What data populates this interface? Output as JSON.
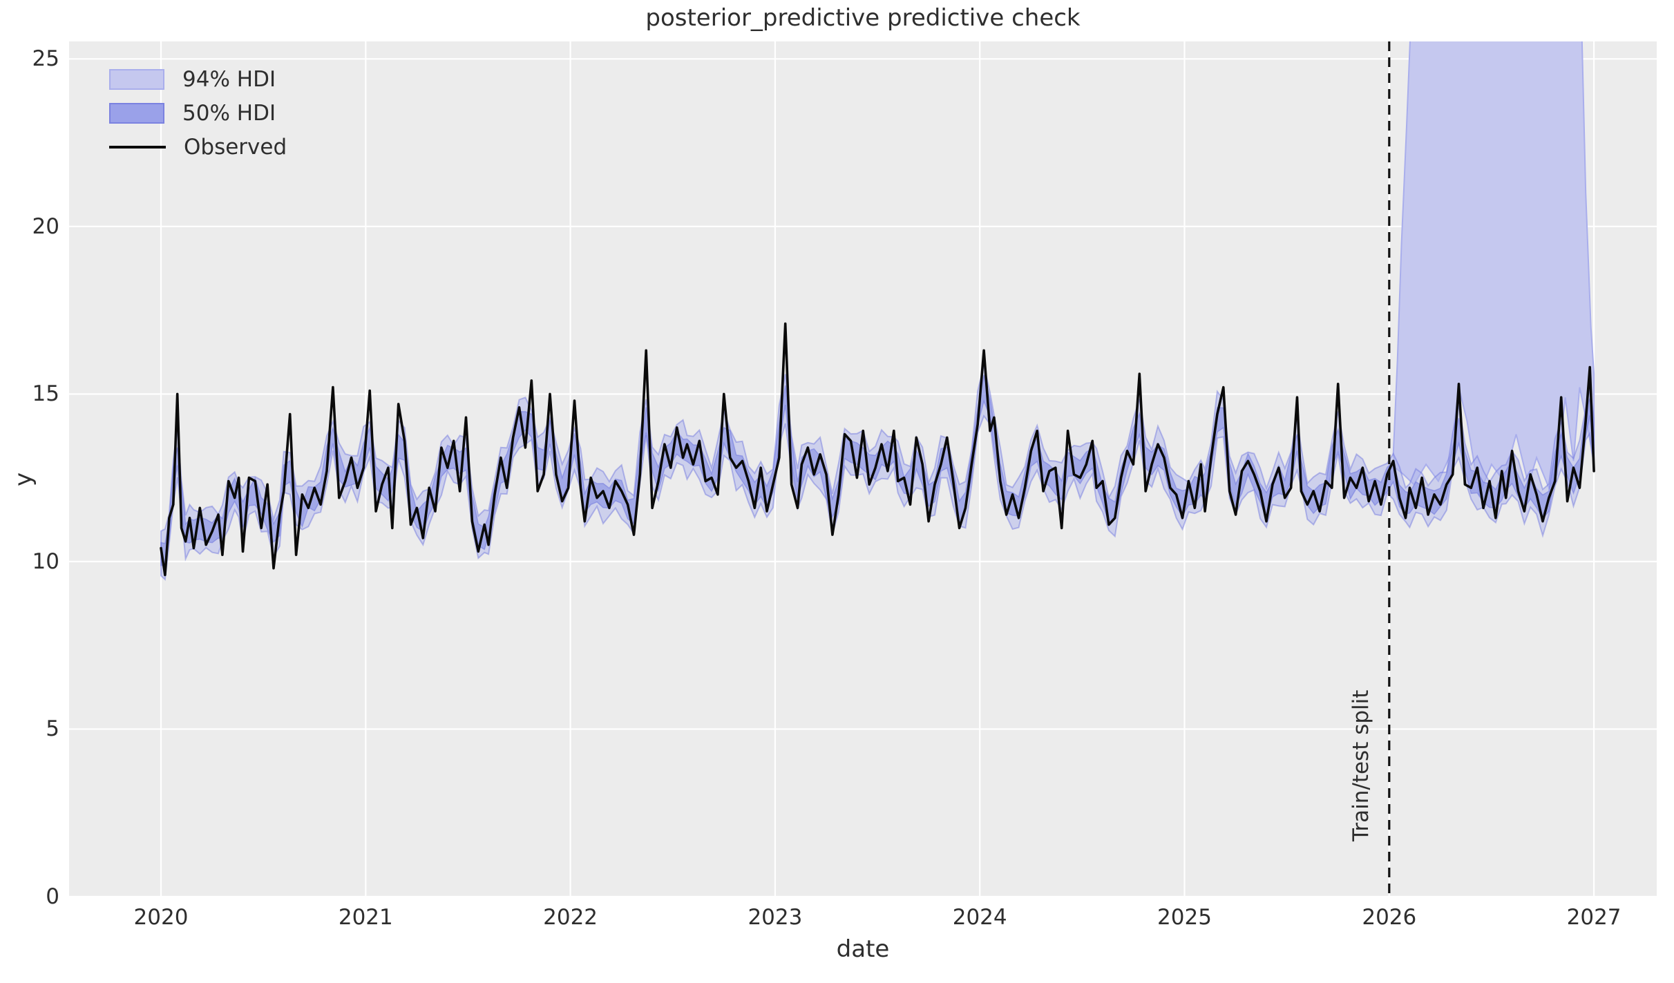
{
  "title": "posterior_predictive predictive check",
  "colors": {
    "figure_bg": "#ffffff",
    "axes_bg": "#ececec",
    "grid": "#ffffff",
    "hdi94_fill": "#c5c8ef",
    "hdi94_edge": "#a9aeec",
    "hdi94_tight_fill": "#aeb3ec",
    "hdi50_tight_fill": "#7e86e4",
    "hdi_tight_edge": "#6a72dd",
    "observed_line": "#0a0a0a",
    "split_line": "#111111",
    "text": "#2e2e2e"
  },
  "legend": {
    "items": [
      {
        "label": "94% HDI",
        "type": "patch",
        "fill": "#c5c8ef",
        "edge": "#a9aeec"
      },
      {
        "label": "50% HDI",
        "type": "patch",
        "fill": "#9aa1e9",
        "edge": "#7b82e0"
      },
      {
        "label": "Observed",
        "type": "line",
        "color": "#0a0a0a"
      }
    ],
    "position": "upper left",
    "frame": false
  },
  "split_marker": {
    "x": 2026.0,
    "label": "Train/test split",
    "style": "dashed"
  },
  "chart_data": {
    "type": "line",
    "title": "posterior_predictive predictive check",
    "xlabel": "date",
    "ylabel": "y",
    "xlim": [
      2019.55,
      2027.31
    ],
    "ylim": [
      0,
      25.5
    ],
    "grid": true,
    "x_tick_values": [
      2020,
      2021,
      2022,
      2023,
      2024,
      2025,
      2026,
      2027
    ],
    "x_tick_labels": [
      "2020",
      "2021",
      "2022",
      "2023",
      "2024",
      "2025",
      "2026",
      "2027"
    ],
    "y_tick_values": [
      0,
      5,
      10,
      15,
      20,
      25
    ],
    "y_tick_labels": [
      "0",
      "5",
      "10",
      "15",
      "20",
      "25"
    ],
    "hdi": {
      "width_94": 0.62,
      "width_50": 0.32,
      "wiggle": 0.3
    },
    "series": {
      "name": "Observed",
      "points": [
        [
          2020.0,
          10.4
        ],
        [
          2020.02,
          9.6
        ],
        [
          2020.04,
          11.3
        ],
        [
          2020.06,
          11.7
        ],
        [
          2020.08,
          15.0
        ],
        [
          2020.1,
          11.0
        ],
        [
          2020.12,
          10.6
        ],
        [
          2020.14,
          11.3
        ],
        [
          2020.16,
          10.4
        ],
        [
          2020.19,
          11.6
        ],
        [
          2020.22,
          10.5
        ],
        [
          2020.25,
          10.9
        ],
        [
          2020.28,
          11.4
        ],
        [
          2020.3,
          10.2
        ],
        [
          2020.33,
          12.4
        ],
        [
          2020.36,
          11.9
        ],
        [
          2020.38,
          12.5
        ],
        [
          2020.4,
          10.3
        ],
        [
          2020.43,
          12.5
        ],
        [
          2020.46,
          12.4
        ],
        [
          2020.49,
          11.0
        ],
        [
          2020.52,
          12.3
        ],
        [
          2020.55,
          9.8
        ],
        [
          2020.58,
          11.4
        ],
        [
          2020.6,
          12.1
        ],
        [
          2020.63,
          14.4
        ],
        [
          2020.66,
          10.2
        ],
        [
          2020.69,
          12.0
        ],
        [
          2020.72,
          11.6
        ],
        [
          2020.75,
          12.2
        ],
        [
          2020.78,
          11.7
        ],
        [
          2020.81,
          12.7
        ],
        [
          2020.84,
          15.2
        ],
        [
          2020.87,
          11.9
        ],
        [
          2020.9,
          12.4
        ],
        [
          2020.93,
          13.1
        ],
        [
          2020.96,
          12.2
        ],
        [
          2020.99,
          12.8
        ],
        [
          2021.02,
          15.1
        ],
        [
          2021.05,
          11.5
        ],
        [
          2021.08,
          12.3
        ],
        [
          2021.11,
          12.8
        ],
        [
          2021.13,
          11.0
        ],
        [
          2021.16,
          14.7
        ],
        [
          2021.19,
          13.6
        ],
        [
          2021.22,
          11.1
        ],
        [
          2021.25,
          11.6
        ],
        [
          2021.28,
          10.7
        ],
        [
          2021.31,
          12.2
        ],
        [
          2021.34,
          11.5
        ],
        [
          2021.37,
          13.4
        ],
        [
          2021.4,
          12.8
        ],
        [
          2021.43,
          13.6
        ],
        [
          2021.46,
          12.1
        ],
        [
          2021.49,
          14.3
        ],
        [
          2021.52,
          11.2
        ],
        [
          2021.55,
          10.3
        ],
        [
          2021.58,
          11.1
        ],
        [
          2021.6,
          10.5
        ],
        [
          2021.63,
          12.0
        ],
        [
          2021.66,
          13.1
        ],
        [
          2021.69,
          12.2
        ],
        [
          2021.72,
          13.7
        ],
        [
          2021.75,
          14.6
        ],
        [
          2021.78,
          13.4
        ],
        [
          2021.81,
          15.4
        ],
        [
          2021.84,
          12.1
        ],
        [
          2021.87,
          12.6
        ],
        [
          2021.9,
          15.0
        ],
        [
          2021.93,
          12.6
        ],
        [
          2021.96,
          11.8
        ],
        [
          2021.99,
          12.2
        ],
        [
          2022.02,
          14.8
        ],
        [
          2022.05,
          12.2
        ],
        [
          2022.07,
          11.2
        ],
        [
          2022.1,
          12.5
        ],
        [
          2022.13,
          11.9
        ],
        [
          2022.16,
          12.1
        ],
        [
          2022.19,
          11.6
        ],
        [
          2022.22,
          12.4
        ],
        [
          2022.25,
          12.1
        ],
        [
          2022.28,
          11.7
        ],
        [
          2022.31,
          10.8
        ],
        [
          2022.34,
          12.6
        ],
        [
          2022.37,
          16.3
        ],
        [
          2022.4,
          11.6
        ],
        [
          2022.43,
          12.4
        ],
        [
          2022.46,
          13.5
        ],
        [
          2022.49,
          12.8
        ],
        [
          2022.52,
          14.0
        ],
        [
          2022.55,
          13.1
        ],
        [
          2022.57,
          13.5
        ],
        [
          2022.6,
          12.9
        ],
        [
          2022.63,
          13.6
        ],
        [
          2022.66,
          12.4
        ],
        [
          2022.69,
          12.5
        ],
        [
          2022.72,
          12.0
        ],
        [
          2022.75,
          15.0
        ],
        [
          2022.78,
          13.1
        ],
        [
          2022.81,
          12.8
        ],
        [
          2022.84,
          13.0
        ],
        [
          2022.87,
          12.4
        ],
        [
          2022.9,
          11.6
        ],
        [
          2022.93,
          12.8
        ],
        [
          2022.96,
          11.5
        ],
        [
          2022.99,
          12.3
        ],
        [
          2023.02,
          13.1
        ],
        [
          2023.05,
          17.1
        ],
        [
          2023.08,
          12.3
        ],
        [
          2023.11,
          11.6
        ],
        [
          2023.13,
          12.9
        ],
        [
          2023.16,
          13.4
        ],
        [
          2023.19,
          12.6
        ],
        [
          2023.22,
          13.2
        ],
        [
          2023.25,
          12.6
        ],
        [
          2023.28,
          10.8
        ],
        [
          2023.31,
          12.0
        ],
        [
          2023.34,
          13.8
        ],
        [
          2023.37,
          13.6
        ],
        [
          2023.4,
          12.5
        ],
        [
          2023.43,
          13.9
        ],
        [
          2023.46,
          12.3
        ],
        [
          2023.49,
          12.8
        ],
        [
          2023.52,
          13.5
        ],
        [
          2023.55,
          12.7
        ],
        [
          2023.58,
          13.9
        ],
        [
          2023.6,
          12.4
        ],
        [
          2023.63,
          12.5
        ],
        [
          2023.66,
          11.7
        ],
        [
          2023.69,
          13.7
        ],
        [
          2023.72,
          12.9
        ],
        [
          2023.75,
          11.2
        ],
        [
          2023.78,
          12.3
        ],
        [
          2023.81,
          12.9
        ],
        [
          2023.84,
          13.7
        ],
        [
          2023.87,
          12.4
        ],
        [
          2023.9,
          11.0
        ],
        [
          2023.93,
          11.6
        ],
        [
          2023.96,
          12.9
        ],
        [
          2023.99,
          14.1
        ],
        [
          2024.02,
          16.3
        ],
        [
          2024.05,
          13.9
        ],
        [
          2024.07,
          14.3
        ],
        [
          2024.1,
          12.4
        ],
        [
          2024.13,
          11.4
        ],
        [
          2024.16,
          12.0
        ],
        [
          2024.19,
          11.3
        ],
        [
          2024.22,
          12.2
        ],
        [
          2024.25,
          13.3
        ],
        [
          2024.28,
          13.9
        ],
        [
          2024.31,
          12.1
        ],
        [
          2024.34,
          12.7
        ],
        [
          2024.37,
          12.8
        ],
        [
          2024.4,
          11.0
        ],
        [
          2024.43,
          13.9
        ],
        [
          2024.46,
          12.6
        ],
        [
          2024.49,
          12.5
        ],
        [
          2024.52,
          12.9
        ],
        [
          2024.55,
          13.6
        ],
        [
          2024.57,
          12.2
        ],
        [
          2024.6,
          12.4
        ],
        [
          2024.63,
          11.1
        ],
        [
          2024.66,
          11.3
        ],
        [
          2024.69,
          12.5
        ],
        [
          2024.72,
          13.3
        ],
        [
          2024.75,
          12.9
        ],
        [
          2024.78,
          15.6
        ],
        [
          2024.81,
          12.1
        ],
        [
          2024.84,
          12.9
        ],
        [
          2024.87,
          13.5
        ],
        [
          2024.9,
          13.1
        ],
        [
          2024.93,
          12.2
        ],
        [
          2024.96,
          12.0
        ],
        [
          2024.99,
          11.3
        ],
        [
          2025.02,
          12.4
        ],
        [
          2025.05,
          11.6
        ],
        [
          2025.08,
          12.9
        ],
        [
          2025.1,
          11.5
        ],
        [
          2025.13,
          13.1
        ],
        [
          2025.16,
          14.4
        ],
        [
          2025.19,
          15.2
        ],
        [
          2025.22,
          12.1
        ],
        [
          2025.25,
          11.4
        ],
        [
          2025.28,
          12.7
        ],
        [
          2025.31,
          13.0
        ],
        [
          2025.34,
          12.6
        ],
        [
          2025.37,
          12.1
        ],
        [
          2025.4,
          11.2
        ],
        [
          2025.43,
          12.3
        ],
        [
          2025.46,
          12.8
        ],
        [
          2025.49,
          11.9
        ],
        [
          2025.52,
          12.2
        ],
        [
          2025.55,
          14.9
        ],
        [
          2025.57,
          12.1
        ],
        [
          2025.6,
          11.7
        ],
        [
          2025.63,
          12.1
        ],
        [
          2025.66,
          11.5
        ],
        [
          2025.69,
          12.4
        ],
        [
          2025.72,
          12.2
        ],
        [
          2025.75,
          15.3
        ],
        [
          2025.78,
          11.9
        ],
        [
          2025.81,
          12.5
        ],
        [
          2025.84,
          12.2
        ],
        [
          2025.87,
          12.8
        ],
        [
          2025.9,
          11.8
        ],
        [
          2025.93,
          12.4
        ],
        [
          2025.96,
          11.7
        ],
        [
          2025.99,
          12.6
        ],
        [
          2026.02,
          13.0
        ],
        [
          2026.05,
          11.9
        ],
        [
          2026.08,
          11.3
        ],
        [
          2026.1,
          12.2
        ],
        [
          2026.13,
          11.6
        ],
        [
          2026.16,
          12.5
        ],
        [
          2026.19,
          11.4
        ],
        [
          2026.22,
          12.0
        ],
        [
          2026.25,
          11.7
        ],
        [
          2026.28,
          12.3
        ],
        [
          2026.31,
          12.6
        ],
        [
          2026.34,
          15.3
        ],
        [
          2026.37,
          12.3
        ],
        [
          2026.4,
          12.2
        ],
        [
          2026.43,
          12.8
        ],
        [
          2026.46,
          11.6
        ],
        [
          2026.49,
          12.4
        ],
        [
          2026.52,
          11.3
        ],
        [
          2026.55,
          12.7
        ],
        [
          2026.57,
          11.9
        ],
        [
          2026.6,
          13.3
        ],
        [
          2026.63,
          12.1
        ],
        [
          2026.66,
          11.5
        ],
        [
          2026.69,
          12.6
        ],
        [
          2026.72,
          12.0
        ],
        [
          2026.75,
          11.2
        ],
        [
          2026.78,
          11.9
        ],
        [
          2026.81,
          12.4
        ],
        [
          2026.84,
          14.9
        ],
        [
          2026.87,
          11.8
        ],
        [
          2026.9,
          12.8
        ],
        [
          2026.93,
          12.2
        ],
        [
          2026.96,
          14.2
        ],
        [
          2026.98,
          15.8
        ],
        [
          2027.0,
          12.7
        ]
      ]
    },
    "forecast_band_94": [
      [
        2026.02,
        13.2
      ],
      [
        2026.04,
        16.0
      ],
      [
        2026.06,
        19.5
      ],
      [
        2026.085,
        23.0
      ],
      [
        2026.105,
        26.0
      ],
      [
        2026.94,
        26.0
      ],
      [
        2026.96,
        21.0
      ],
      [
        2026.985,
        17.0
      ],
      [
        2027.0,
        15.6
      ],
      [
        2027.0,
        12.9
      ],
      [
        2026.97,
        14.0
      ],
      [
        2026.93,
        15.2
      ],
      [
        2026.9,
        13.0
      ],
      [
        2026.86,
        14.9
      ],
      [
        2026.82,
        12.6
      ],
      [
        2026.78,
        12.2
      ],
      [
        2026.72,
        13.1
      ],
      [
        2026.68,
        12.3
      ],
      [
        2026.62,
        13.8
      ],
      [
        2026.56,
        12.4
      ],
      [
        2026.5,
        12.9
      ],
      [
        2026.44,
        12.0
      ],
      [
        2026.38,
        14.2
      ],
      [
        2026.34,
        15.2
      ],
      [
        2026.3,
        13.2
      ],
      [
        2026.24,
        12.4
      ],
      [
        2026.18,
        12.9
      ],
      [
        2026.12,
        12.3
      ],
      [
        2026.07,
        12.6
      ],
      [
        2026.03,
        12.8
      ]
    ]
  },
  "axis_labels": {
    "x": "date",
    "y": "y"
  }
}
